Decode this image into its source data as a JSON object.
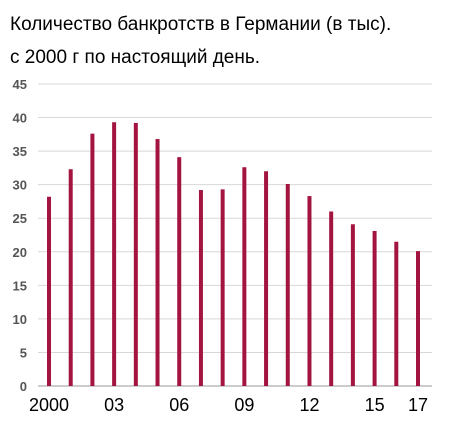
{
  "header": {
    "title": "Количество банкротств в Германии (в тыс).",
    "subtitle": "с 2000 г по настоящий день."
  },
  "chart_data": {
    "type": "bar",
    "title": "Количество банкротств в Германии (в тыс).",
    "subtitle": "с 2000 г по настоящий день.",
    "xlabel": "",
    "ylabel": "",
    "ylim": [
      0,
      45
    ],
    "yticks": [
      0,
      5,
      10,
      15,
      20,
      25,
      30,
      35,
      40,
      45
    ],
    "grid": true,
    "bar_color": "#a31540",
    "categories": [
      "2000",
      "2001",
      "2002",
      "2003",
      "2004",
      "2005",
      "2006",
      "2007",
      "2008",
      "2009",
      "2010",
      "2011",
      "2012",
      "2013",
      "2014",
      "2015",
      "2016",
      "2017"
    ],
    "values": [
      28.2,
      32.3,
      37.6,
      39.3,
      39.2,
      36.8,
      34.1,
      29.2,
      29.3,
      32.6,
      32.0,
      30.1,
      28.3,
      26.0,
      24.1,
      23.1,
      21.5,
      20.1
    ],
    "xtick_labels": [
      {
        "index": 0,
        "label": "2000"
      },
      {
        "index": 3,
        "label": "03"
      },
      {
        "index": 6,
        "label": "06"
      },
      {
        "index": 9,
        "label": "09"
      },
      {
        "index": 12,
        "label": "12"
      },
      {
        "index": 15,
        "label": "15"
      },
      {
        "index": 17,
        "label": "17"
      }
    ]
  }
}
